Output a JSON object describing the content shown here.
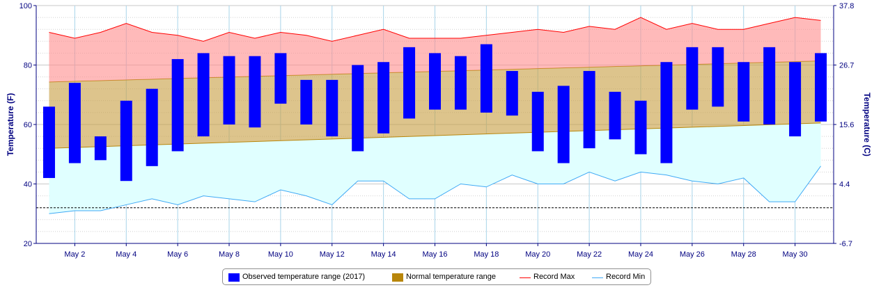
{
  "chart_data": {
    "type": "bar",
    "days": [
      1,
      2,
      3,
      4,
      5,
      6,
      7,
      8,
      9,
      10,
      11,
      12,
      13,
      14,
      15,
      16,
      17,
      18,
      19,
      20,
      21,
      22,
      23,
      24,
      25,
      26,
      27,
      28,
      29,
      30,
      31
    ],
    "x_ticks": [
      {
        "day": 2,
        "label": "May 2"
      },
      {
        "day": 4,
        "label": "May 4"
      },
      {
        "day": 6,
        "label": "May 6"
      },
      {
        "day": 8,
        "label": "May 8"
      },
      {
        "day": 10,
        "label": "May 10"
      },
      {
        "day": 12,
        "label": "May 12"
      },
      {
        "day": 14,
        "label": "May 14"
      },
      {
        "day": 16,
        "label": "May 16"
      },
      {
        "day": 18,
        "label": "May 18"
      },
      {
        "day": 20,
        "label": "May 20"
      },
      {
        "day": 22,
        "label": "May 22"
      },
      {
        "day": 24,
        "label": "May 24"
      },
      {
        "day": 26,
        "label": "May 26"
      },
      {
        "day": 28,
        "label": "May 28"
      },
      {
        "day": 30,
        "label": "May 30"
      }
    ],
    "ylim": [
      20,
      100
    ],
    "y_ticks": [
      20,
      40,
      60,
      80,
      100
    ],
    "y2_ticks": [
      "-6.7",
      "4.4",
      "15.6",
      "26.7",
      "37.8"
    ],
    "ylabel": "Temperature (F)",
    "y2label": "Temperature (C)",
    "reference_line": 32,
    "grid": true,
    "legend_position": "bottom-center",
    "series": [
      {
        "name": "Observed temperature range (2017)",
        "type": "range-bar",
        "color": "#0000ff",
        "low": [
          42,
          47,
          48,
          41,
          46,
          51,
          56,
          60,
          59,
          67,
          60,
          56,
          51,
          57,
          62,
          65,
          65,
          64,
          63,
          51,
          47,
          52,
          55,
          50,
          47,
          65,
          66,
          61,
          60,
          56,
          61
        ],
        "high": [
          66,
          74,
          56,
          68,
          72,
          82,
          84,
          83,
          83,
          84,
          75,
          75,
          80,
          81,
          86,
          84,
          83,
          87,
          78,
          71,
          73,
          78,
          71,
          68,
          81,
          86,
          86,
          81,
          86,
          81,
          84
        ]
      },
      {
        "name": "Normal temperature range",
        "type": "range-area",
        "color": "#b8860b",
        "low_start": 52,
        "low_end": 60.5,
        "high_start": 74.3,
        "high_end": 81.4
      },
      {
        "name": "Record Max",
        "type": "line",
        "color": "#ff0000",
        "values": [
          91,
          89,
          91,
          94,
          91,
          90,
          88,
          91,
          89,
          91,
          90,
          88,
          90,
          92,
          89,
          89,
          89,
          90,
          91,
          92,
          91,
          93,
          92,
          96,
          92,
          94,
          92,
          92,
          94,
          96,
          95
        ]
      },
      {
        "name": "Record Min",
        "type": "line",
        "color": "#3fa9f5",
        "values": [
          30,
          31,
          31,
          33,
          35,
          33,
          36,
          35,
          34,
          38,
          36,
          33,
          41,
          41,
          35,
          35,
          40,
          39,
          43,
          40,
          40,
          44,
          41,
          44,
          43,
          41,
          40,
          42,
          34,
          34,
          46
        ]
      }
    ]
  },
  "legend": {
    "observed": "Observed temperature range (2017)",
    "normal": "Normal temperature range",
    "record_max": "Record Max",
    "record_min": "Record Min"
  }
}
